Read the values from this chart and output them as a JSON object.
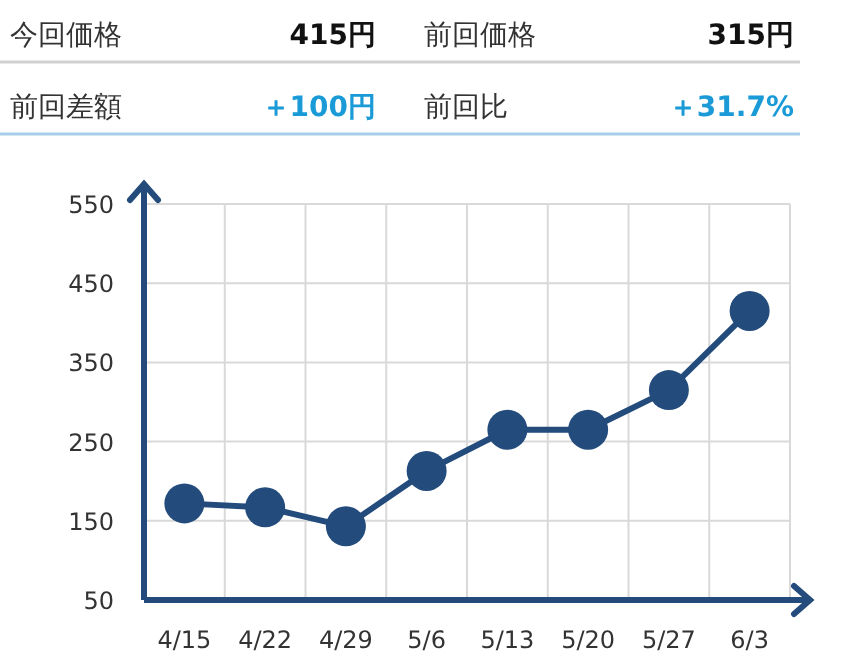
{
  "chart_data": [
    {
      "type": "other",
      "annotations": [
        "今回価格",
        "415円",
        "前回価格",
        "315円",
        "前回差額",
        "＋100円",
        "前回比",
        "＋31.7%"
      ]
    },
    {
      "type": "line",
      "categories": [
        "4/15",
        "4/22",
        "4/29",
        "5/6",
        "5/13",
        "5/20",
        "5/27",
        "6/3"
      ],
      "series": [
        {
          "color": "#234b7c",
          "values": [
            172,
            167,
            143,
            213,
            265,
            265,
            315,
            415
          ]
        }
      ],
      "ylim": [
        50,
        550
      ],
      "yticks": [
        50,
        150,
        250,
        350,
        450,
        550
      ],
      "grid": true,
      "marker": "circle",
      "line_style": "solid"
    }
  ]
}
